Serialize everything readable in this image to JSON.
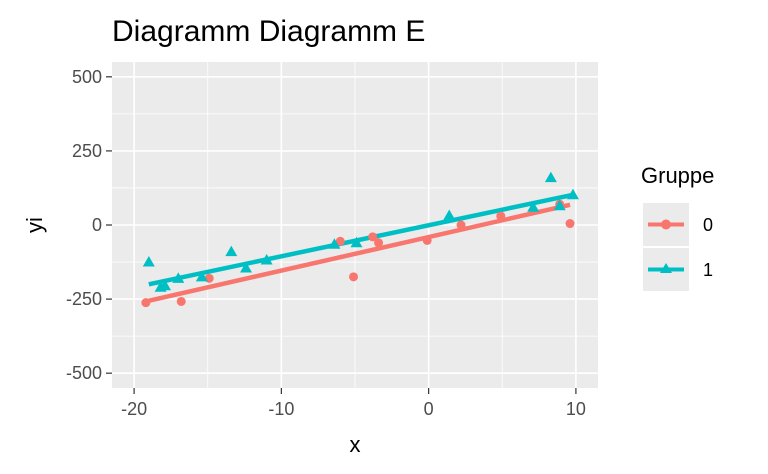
{
  "chart_data": {
    "type": "scatter",
    "title": "Diagramm Diagramm E",
    "xlabel": "x",
    "ylabel": "yi",
    "xlim": [
      -21.5,
      11.5
    ],
    "ylim": [
      -550,
      550
    ],
    "x_ticks": [
      -20,
      -10,
      0,
      10
    ],
    "x_tick_labels": [
      "-20",
      "-10",
      "0",
      "10"
    ],
    "y_ticks": [
      -500,
      -250,
      0,
      250,
      500
    ],
    "y_tick_labels": [
      "-500",
      "-250",
      "0",
      "250",
      "500"
    ],
    "grid": true,
    "legend": {
      "title": "Gruppe",
      "position": "right"
    },
    "series": [
      {
        "name": "0",
        "color": "#F8766D",
        "marker": "circle",
        "points": [
          [
            -19.2,
            -262
          ],
          [
            -16.8,
            -258
          ],
          [
            -14.9,
            -180
          ],
          [
            -6.0,
            -55
          ],
          [
            -5.1,
            -175
          ],
          [
            -3.8,
            -40
          ],
          [
            -3.4,
            -60
          ],
          [
            -0.1,
            -52
          ],
          [
            2.2,
            0
          ],
          [
            4.9,
            30
          ],
          [
            8.9,
            70
          ],
          [
            9.6,
            5
          ]
        ],
        "trend": {
          "x": [
            -19.2,
            9.6
          ],
          "y": [
            -258,
            68
          ]
        }
      },
      {
        "name": "1",
        "color": "#00BFC4",
        "marker": "triangle",
        "points": [
          [
            -19.0,
            -125
          ],
          [
            -18.2,
            -210
          ],
          [
            -17.9,
            -205
          ],
          [
            -17.0,
            -180
          ],
          [
            -15.4,
            -175
          ],
          [
            -13.4,
            -90
          ],
          [
            -12.4,
            -145
          ],
          [
            -11.0,
            -118
          ],
          [
            -6.4,
            -65
          ],
          [
            -4.9,
            -60
          ],
          [
            1.4,
            32
          ],
          [
            7.1,
            60
          ],
          [
            8.3,
            160
          ],
          [
            8.9,
            65
          ],
          [
            9.8,
            102
          ]
        ],
        "trend": {
          "x": [
            -19.0,
            9.8
          ],
          "y": [
            -200,
            102
          ]
        }
      }
    ]
  }
}
